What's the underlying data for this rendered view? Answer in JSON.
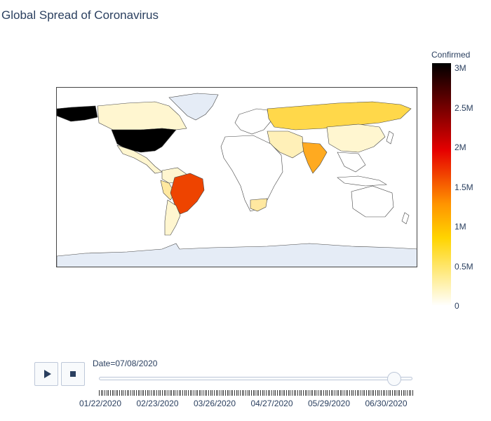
{
  "title": "Global Spread of Coronavirus",
  "colorbar": {
    "title": "Confirmed",
    "ticks": [
      "3M",
      "2.5M",
      "2M",
      "1.5M",
      "1M",
      "0.5M",
      "0"
    ]
  },
  "animation": {
    "current_label": "Date=07/08/2020",
    "slider_fraction": 0.96,
    "tick_labels": [
      "01/22/2020",
      "02/23/2020",
      "03/26/2020",
      "04/27/2020",
      "05/29/2020",
      "06/30/2020"
    ]
  },
  "colors": {
    "us": "#000000",
    "brazil": "#ee4400",
    "india_russia": "#ffd84a",
    "low": "#fff6d0",
    "antarctica": "#e5ecf6",
    "greenland": "#e5ecf6"
  }
}
